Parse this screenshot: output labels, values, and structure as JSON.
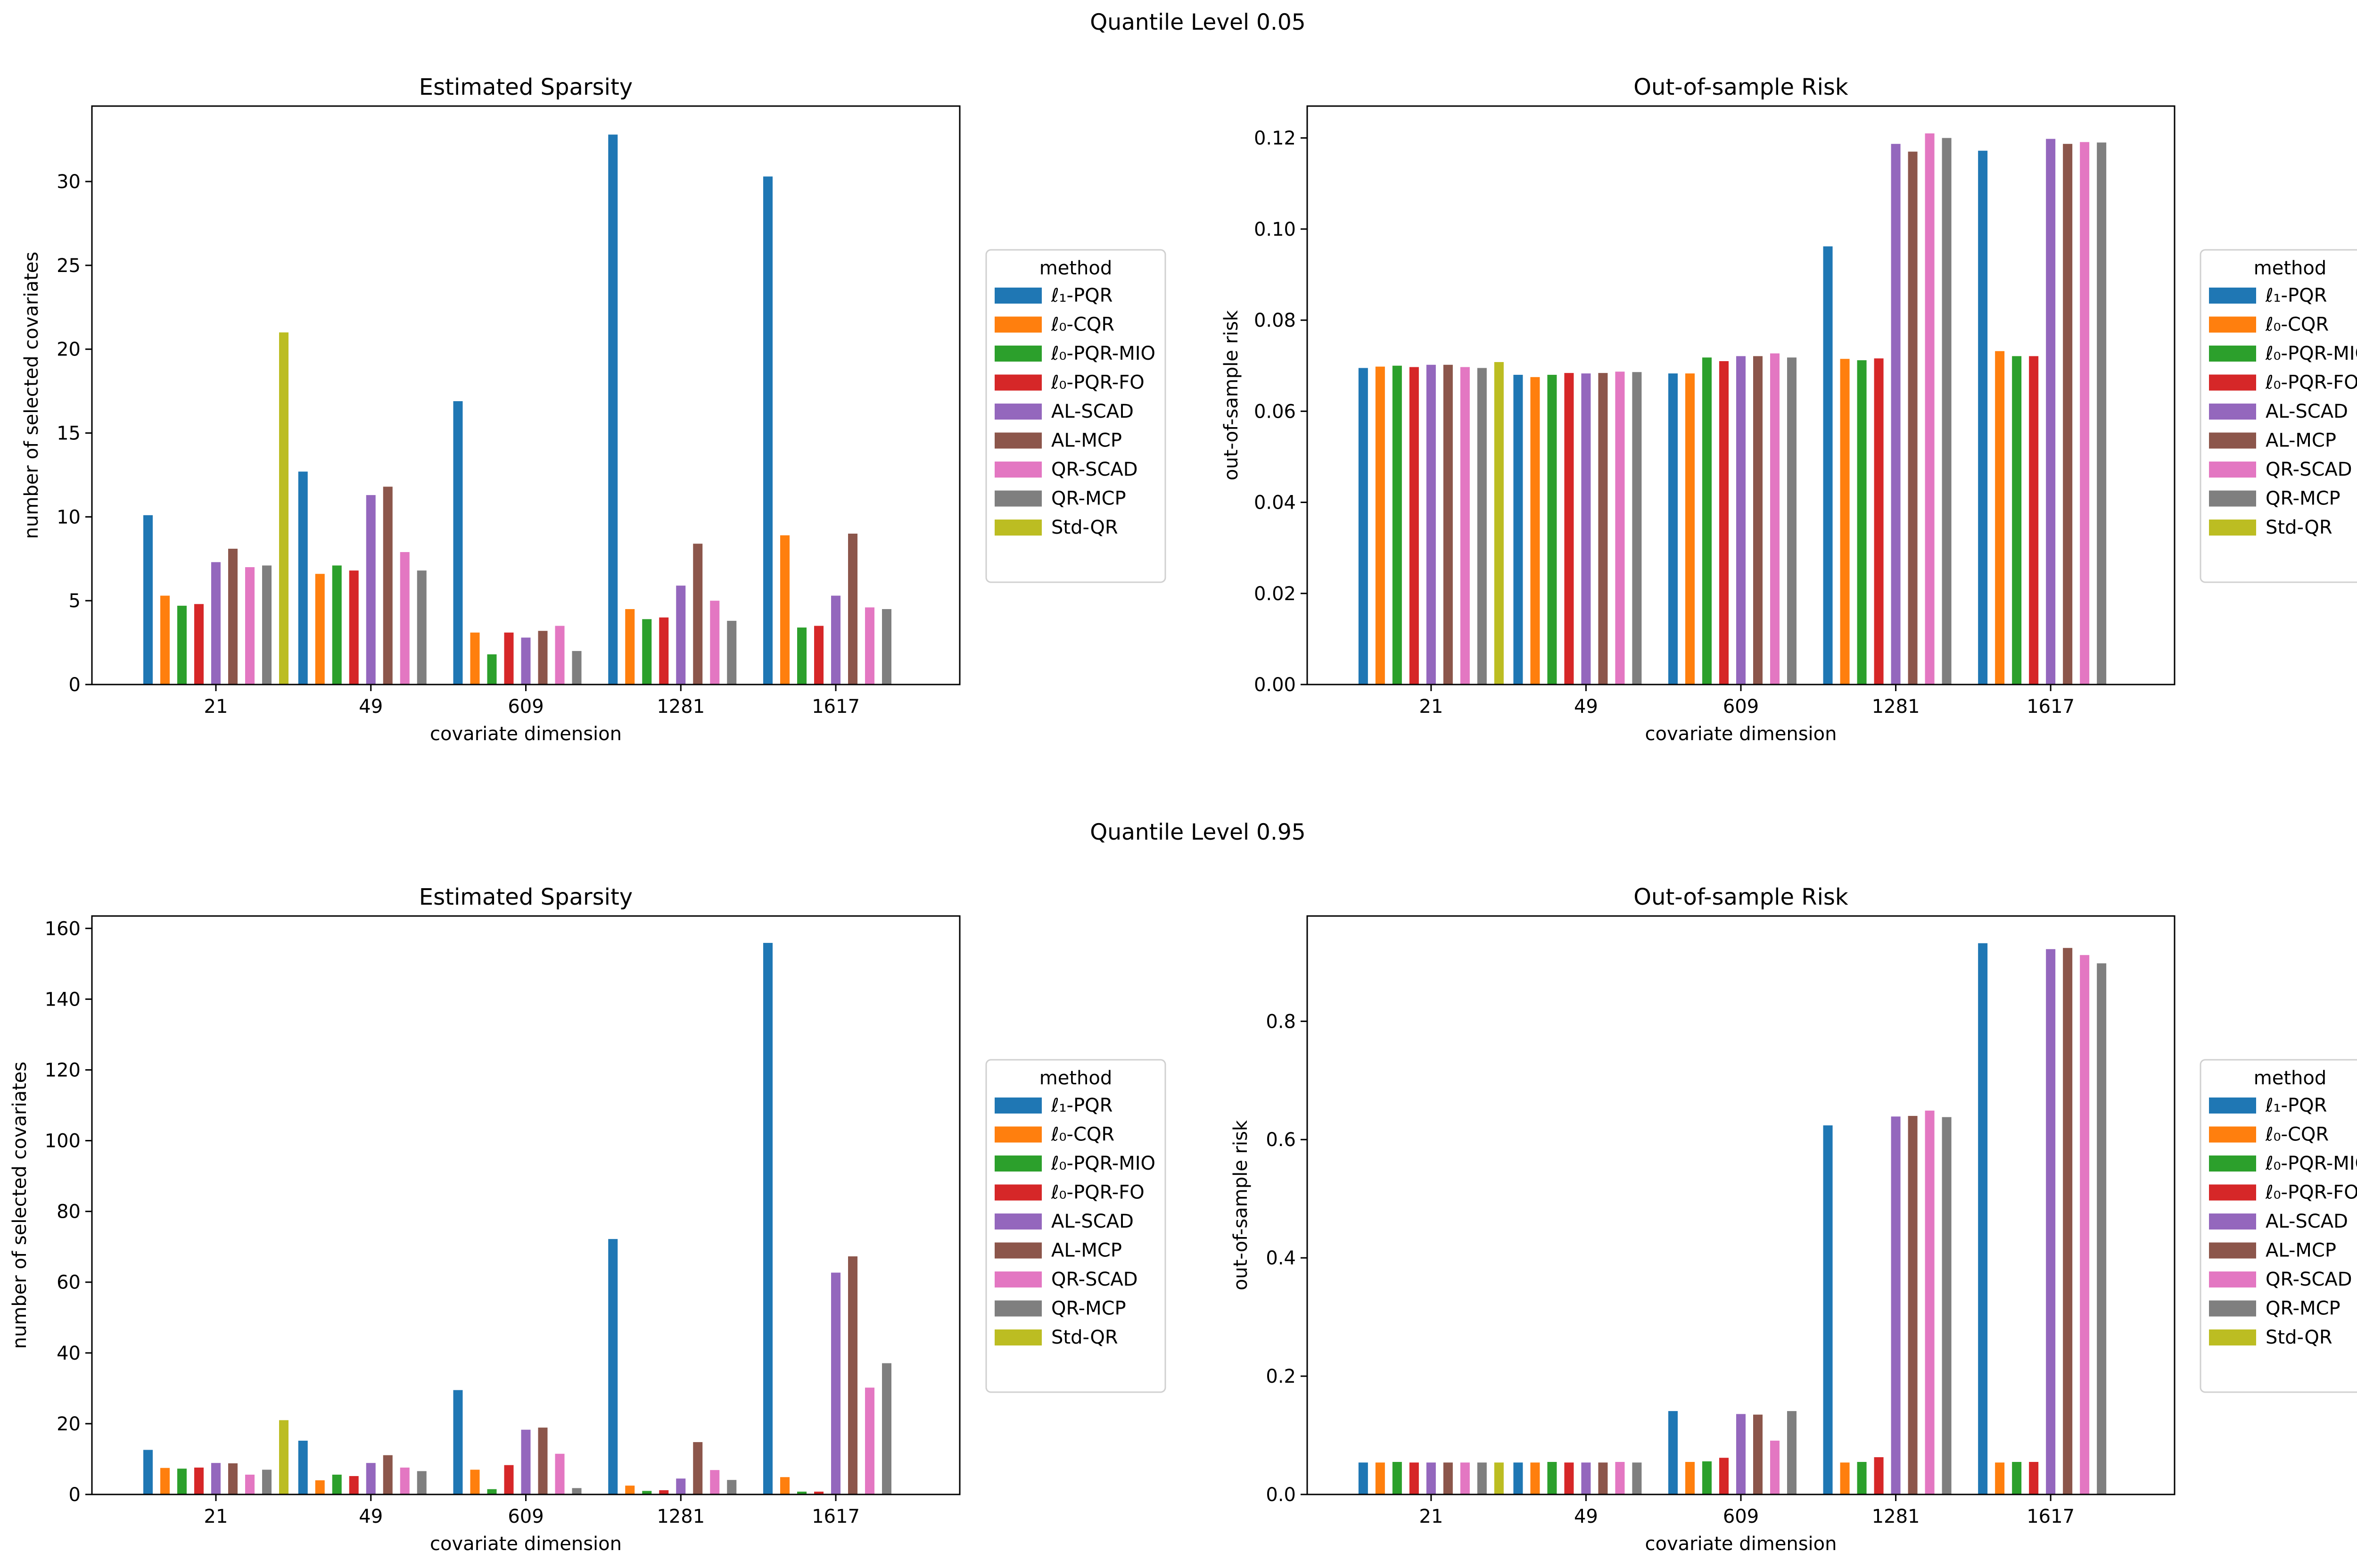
{
  "figure": {
    "row_titles": [
      "Quantile Level 0.05",
      "Quantile Level 0.95"
    ]
  },
  "legend": {
    "title": "method",
    "entries": [
      "ℓ₁-PQR",
      "ℓ₀-CQR",
      "ℓ₀-PQR-MIO",
      "ℓ₀-PQR-FO",
      "AL-SCAD",
      "AL-MCP",
      "QR-SCAD",
      "QR-MCP",
      "Std-QR"
    ],
    "colors": [
      "#1f77b4",
      "#ff7f0e",
      "#2ca02c",
      "#d62728",
      "#9467bd",
      "#8c564b",
      "#e377c2",
      "#7f7f7f",
      "#bcbd22"
    ]
  },
  "chart_data": [
    {
      "type": "bar",
      "title": "Estimated Sparsity",
      "xlabel": "covariate dimension",
      "ylabel": "number of selected covariates",
      "categories": [
        "21",
        "49",
        "609",
        "1281",
        "1617"
      ],
      "ylim": [
        0,
        34.5
      ],
      "yticks": [
        0,
        5,
        10,
        15,
        20,
        25,
        30
      ],
      "ytick_labels": [
        "0",
        "5",
        "10",
        "15",
        "20",
        "25",
        "30"
      ],
      "series": [
        {
          "name": "ℓ₁-PQR",
          "values": [
            10.1,
            12.7,
            16.9,
            32.8,
            30.3
          ]
        },
        {
          "name": "ℓ₀-CQR",
          "values": [
            5.3,
            6.6,
            3.1,
            4.5,
            8.9
          ]
        },
        {
          "name": "ℓ₀-PQR-MIO",
          "values": [
            4.7,
            7.1,
            1.8,
            3.9,
            3.4
          ]
        },
        {
          "name": "ℓ₀-PQR-FO",
          "values": [
            4.8,
            6.8,
            3.1,
            4.0,
            3.5
          ]
        },
        {
          "name": "AL-SCAD",
          "values": [
            7.3,
            11.3,
            2.8,
            5.9,
            5.3
          ]
        },
        {
          "name": "AL-MCP",
          "values": [
            8.1,
            11.8,
            3.2,
            8.4,
            9.0
          ]
        },
        {
          "name": "QR-SCAD",
          "values": [
            7.0,
            7.9,
            3.5,
            5.0,
            4.6
          ]
        },
        {
          "name": "QR-MCP",
          "values": [
            7.1,
            6.8,
            2.0,
            3.8,
            4.5
          ]
        },
        {
          "name": "Std-QR",
          "values": [
            21.0,
            null,
            null,
            null,
            null
          ]
        }
      ]
    },
    {
      "type": "bar",
      "title": "Out-of-sample Risk",
      "xlabel": "covariate dimension",
      "ylabel": "out-of-sample risk",
      "categories": [
        "21",
        "49",
        "609",
        "1281",
        "1617"
      ],
      "ylim": [
        0,
        0.127
      ],
      "yticks": [
        0,
        0.02,
        0.04,
        0.06,
        0.08,
        0.1,
        0.12
      ],
      "ytick_labels": [
        "0.00",
        "0.02",
        "0.04",
        "0.06",
        "0.08",
        "0.10",
        "0.12"
      ],
      "series": [
        {
          "name": "ℓ₁-PQR",
          "values": [
            0.0695,
            0.068,
            0.0683,
            0.0962,
            0.1172
          ]
        },
        {
          "name": "ℓ₀-CQR",
          "values": [
            0.0698,
            0.0675,
            0.0683,
            0.0715,
            0.0732
          ]
        },
        {
          "name": "ℓ₀-PQR-MIO",
          "values": [
            0.07,
            0.068,
            0.0718,
            0.0712,
            0.0721
          ]
        },
        {
          "name": "ℓ₀-PQR-FO",
          "values": [
            0.0697,
            0.0684,
            0.071,
            0.0716,
            0.0721
          ]
        },
        {
          "name": "AL-SCAD",
          "values": [
            0.0702,
            0.0683,
            0.0721,
            0.1187,
            0.1198
          ]
        },
        {
          "name": "AL-MCP",
          "values": [
            0.0702,
            0.0684,
            0.0721,
            0.117,
            0.1187
          ]
        },
        {
          "name": "QR-SCAD",
          "values": [
            0.0697,
            0.0687,
            0.0727,
            0.121,
            0.1191
          ]
        },
        {
          "name": "QR-MCP",
          "values": [
            0.0695,
            0.0686,
            0.0718,
            0.12,
            0.119
          ]
        },
        {
          "name": "Std-QR",
          "values": [
            0.0708,
            null,
            null,
            null,
            null
          ]
        }
      ]
    },
    {
      "type": "bar",
      "title": "Estimated Sparsity",
      "xlabel": "covariate dimension",
      "ylabel": "number of selected covariates",
      "categories": [
        "21",
        "49",
        "609",
        "1281",
        "1617"
      ],
      "ylim": [
        0,
        163.5
      ],
      "yticks": [
        0,
        20,
        40,
        60,
        80,
        100,
        120,
        140,
        160
      ],
      "ytick_labels": [
        "0",
        "20",
        "40",
        "60",
        "80",
        "100",
        "120",
        "140",
        "160"
      ],
      "series": [
        {
          "name": "ℓ₁-PQR",
          "values": [
            12.6,
            15.2,
            29.5,
            72.2,
            155.9
          ]
        },
        {
          "name": "ℓ₀-CQR",
          "values": [
            7.5,
            4.0,
            7.0,
            2.5,
            4.9
          ]
        },
        {
          "name": "ℓ₀-PQR-MIO",
          "values": [
            7.3,
            5.6,
            1.5,
            1.0,
            0.8
          ]
        },
        {
          "name": "ℓ₀-PQR-FO",
          "values": [
            7.6,
            5.2,
            8.3,
            1.2,
            0.8
          ]
        },
        {
          "name": "AL-SCAD",
          "values": [
            8.9,
            8.9,
            18.3,
            4.5,
            62.7
          ]
        },
        {
          "name": "AL-MCP",
          "values": [
            8.8,
            11.1,
            18.9,
            14.8,
            67.3
          ]
        },
        {
          "name": "QR-SCAD",
          "values": [
            5.6,
            7.6,
            11.5,
            6.9,
            30.2
          ]
        },
        {
          "name": "QR-MCP",
          "values": [
            7.0,
            6.6,
            1.8,
            4.1,
            37.1
          ]
        },
        {
          "name": "Std-QR",
          "values": [
            21.0,
            null,
            null,
            null,
            null
          ]
        }
      ]
    },
    {
      "type": "bar",
      "title": "Out-of-sample Risk",
      "xlabel": "covariate dimension",
      "ylabel": "out-of-sample risk",
      "categories": [
        "21",
        "49",
        "609",
        "1281",
        "1617"
      ],
      "ylim": [
        0,
        0.978
      ],
      "yticks": [
        0,
        0.2,
        0.4,
        0.6,
        0.8
      ],
      "ytick_labels": [
        "0.0",
        "0.2",
        "0.4",
        "0.6",
        "0.8"
      ],
      "series": [
        {
          "name": "ℓ₁-PQR",
          "values": [
            0.054,
            0.054,
            0.141,
            0.624,
            0.932
          ]
        },
        {
          "name": "ℓ₀-CQR",
          "values": [
            0.054,
            0.054,
            0.055,
            0.054,
            0.054
          ]
        },
        {
          "name": "ℓ₀-PQR-MIO",
          "values": [
            0.055,
            0.055,
            0.056,
            0.055,
            0.055
          ]
        },
        {
          "name": "ℓ₀-PQR-FO",
          "values": [
            0.054,
            0.054,
            0.062,
            0.063,
            0.055
          ]
        },
        {
          "name": "AL-SCAD",
          "values": [
            0.054,
            0.054,
            0.136,
            0.639,
            0.922
          ]
        },
        {
          "name": "AL-MCP",
          "values": [
            0.054,
            0.054,
            0.135,
            0.64,
            0.924
          ]
        },
        {
          "name": "QR-SCAD",
          "values": [
            0.054,
            0.055,
            0.091,
            0.649,
            0.912
          ]
        },
        {
          "name": "QR-MCP",
          "values": [
            0.054,
            0.054,
            0.141,
            0.638,
            0.898
          ]
        },
        {
          "name": "Std-QR",
          "values": [
            0.054,
            null,
            null,
            null,
            null
          ]
        }
      ]
    }
  ]
}
